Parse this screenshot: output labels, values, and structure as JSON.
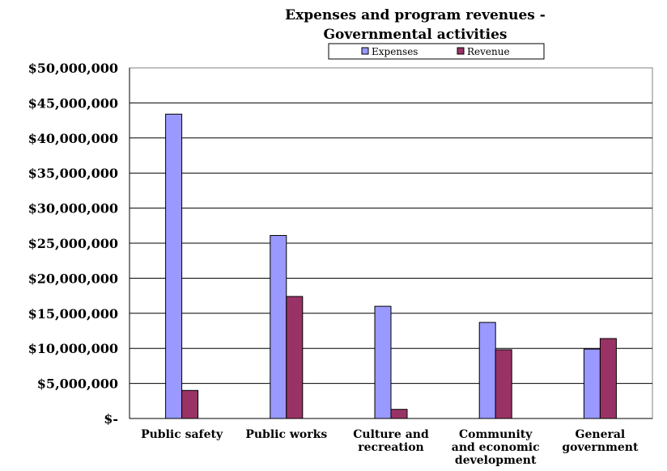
{
  "chart_data": {
    "type": "bar",
    "title": "Expenses and program revenues -",
    "subtitle": "Governmental activities",
    "categories": [
      [
        "Public safety"
      ],
      [
        "Public works"
      ],
      [
        "Culture and",
        "recreation"
      ],
      [
        "Community",
        "and economic",
        "development"
      ],
      [
        "General",
        "government"
      ]
    ],
    "series": [
      {
        "name": "Expenses",
        "color": "#9999ff",
        "values": [
          43400000,
          26100000,
          16000000,
          13700000,
          9900000
        ]
      },
      {
        "name": "Revenue",
        "color": "#993366",
        "values": [
          4000000,
          17400000,
          1300000,
          9800000,
          11400000
        ]
      }
    ],
    "ylim": [
      0,
      50000000
    ],
    "yticks": [
      {
        "value": 0,
        "label": "$-"
      },
      {
        "value": 5000000,
        "label": "$5,000,000"
      },
      {
        "value": 10000000,
        "label": "$10,000,000"
      },
      {
        "value": 15000000,
        "label": "$15,000,000"
      },
      {
        "value": 20000000,
        "label": "$20,000,000"
      },
      {
        "value": 25000000,
        "label": "$25,000,000"
      },
      {
        "value": 30000000,
        "label": "$30,000,000"
      },
      {
        "value": 35000000,
        "label": "$35,000,000"
      },
      {
        "value": 40000000,
        "label": "$40,000,000"
      },
      {
        "value": 45000000,
        "label": "$45,000,000"
      },
      {
        "value": 50000000,
        "label": "$50,000,000"
      }
    ],
    "grid": true,
    "legend_position": "top-center"
  }
}
